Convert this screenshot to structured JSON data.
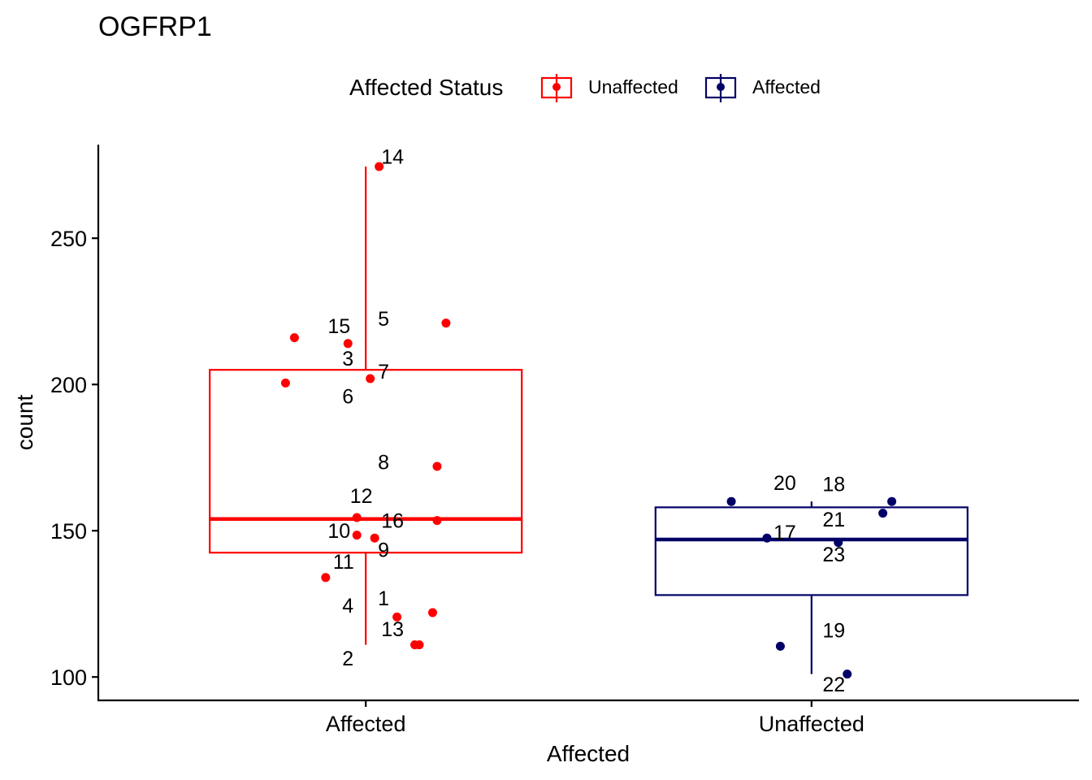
{
  "chart_data": {
    "type": "boxplot",
    "title": "OGFRP1",
    "xlabel": "Affected",
    "ylabel": "count",
    "ylim": [
      92,
      282
    ],
    "yticks": [
      100,
      150,
      200,
      250
    ],
    "categories": [
      "Affected",
      "Unaffected"
    ],
    "legend": {
      "title": "Affected Status",
      "position": "top",
      "entries": [
        {
          "label": "Unaffected",
          "color": "#FF0000"
        },
        {
          "label": "Affected",
          "color": "#000066"
        }
      ]
    },
    "boxes": [
      {
        "category": "Affected",
        "color": "#FF0000",
        "whisker_low": 111,
        "q1": 142.5,
        "median": 154,
        "q3": 205,
        "whisker_high": 274.5
      },
      {
        "category": "Unaffected",
        "color": "#000066",
        "whisker_low": 101,
        "q1": 128,
        "median": 147,
        "q3": 158,
        "whisker_high": 160
      }
    ],
    "points": [
      {
        "id": "1",
        "group": "Affected",
        "jitter": 0.07,
        "value": 120.5
      },
      {
        "id": "2",
        "group": "Affected",
        "jitter": 0.11,
        "value": 111
      },
      {
        "id": "3",
        "group": "Affected",
        "jitter": -0.04,
        "value": 214
      },
      {
        "id": "4",
        "group": "Affected",
        "jitter": 0.15,
        "value": 122
      },
      {
        "id": "5",
        "group": "Affected",
        "jitter": 0.18,
        "value": 221
      },
      {
        "id": "6",
        "group": "Affected",
        "jitter": -0.18,
        "value": 200.5
      },
      {
        "id": "7",
        "group": "Affected",
        "jitter": 0.01,
        "value": 202
      },
      {
        "id": "8",
        "group": "Affected",
        "jitter": 0.16,
        "value": 172
      },
      {
        "id": "9",
        "group": "Affected",
        "jitter": 0.02,
        "value": 147.5
      },
      {
        "id": "10",
        "group": "Affected",
        "jitter": -0.02,
        "value": 148.5
      },
      {
        "id": "11",
        "group": "Affected",
        "jitter": -0.09,
        "value": 134
      },
      {
        "id": "12",
        "group": "Affected",
        "jitter": -0.02,
        "value": 154.5
      },
      {
        "id": "13",
        "group": "Affected",
        "jitter": 0.12,
        "value": 111
      },
      {
        "id": "14",
        "group": "Affected",
        "jitter": 0.03,
        "value": 274.5
      },
      {
        "id": "15",
        "group": "Affected",
        "jitter": -0.16,
        "value": 216
      },
      {
        "id": "16",
        "group": "Affected",
        "jitter": 0.16,
        "value": 153.5
      },
      {
        "id": "17",
        "group": "Unaffected",
        "jitter": -0.1,
        "value": 147.5
      },
      {
        "id": "18",
        "group": "Unaffected",
        "jitter": 0.18,
        "value": 160
      },
      {
        "id": "19",
        "group": "Unaffected",
        "jitter": -0.07,
        "value": 110.5
      },
      {
        "id": "20",
        "group": "Unaffected",
        "jitter": -0.18,
        "value": 160
      },
      {
        "id": "21",
        "group": "Unaffected",
        "jitter": 0.16,
        "value": 156
      },
      {
        "id": "22",
        "group": "Unaffected",
        "jitter": 0.08,
        "value": 101
      },
      {
        "id": "23",
        "group": "Unaffected",
        "jitter": 0.06,
        "value": 146
      }
    ],
    "point_labels": [
      {
        "id": "1",
        "group": "Affected",
        "jitter": 0.04,
        "value": 127
      },
      {
        "id": "2",
        "group": "Affected",
        "jitter": -0.04,
        "value": 106.5
      },
      {
        "id": "3",
        "group": "Affected",
        "jitter": -0.04,
        "value": 209
      },
      {
        "id": "4",
        "group": "Affected",
        "jitter": -0.04,
        "value": 124.5
      },
      {
        "id": "5",
        "group": "Affected",
        "jitter": 0.04,
        "value": 222.5
      },
      {
        "id": "6",
        "group": "Affected",
        "jitter": -0.04,
        "value": 196
      },
      {
        "id": "7",
        "group": "Affected",
        "jitter": 0.04,
        "value": 204.5
      },
      {
        "id": "8",
        "group": "Affected",
        "jitter": 0.04,
        "value": 173.5
      },
      {
        "id": "9",
        "group": "Affected",
        "jitter": 0.04,
        "value": 143.5
      },
      {
        "id": "10",
        "group": "Affected",
        "jitter": -0.06,
        "value": 150
      },
      {
        "id": "11",
        "group": "Affected",
        "jitter": -0.05,
        "value": 139.5
      },
      {
        "id": "12",
        "group": "Affected",
        "jitter": -0.01,
        "value": 162
      },
      {
        "id": "13",
        "group": "Affected",
        "jitter": 0.06,
        "value": 116.5
      },
      {
        "id": "14",
        "group": "Affected",
        "jitter": 0.06,
        "value": 278
      },
      {
        "id": "15",
        "group": "Affected",
        "jitter": -0.06,
        "value": 220
      },
      {
        "id": "16",
        "group": "Affected",
        "jitter": 0.06,
        "value": 153.5
      },
      {
        "id": "17",
        "group": "Unaffected",
        "jitter": -0.06,
        "value": 149.5
      },
      {
        "id": "18",
        "group": "Unaffected",
        "jitter": 0.05,
        "value": 166
      },
      {
        "id": "19",
        "group": "Unaffected",
        "jitter": 0.05,
        "value": 116
      },
      {
        "id": "20",
        "group": "Unaffected",
        "jitter": -0.06,
        "value": 166.5
      },
      {
        "id": "21",
        "group": "Unaffected",
        "jitter": 0.05,
        "value": 154
      },
      {
        "id": "22",
        "group": "Unaffected",
        "jitter": 0.05,
        "value": 97.5
      },
      {
        "id": "23",
        "group": "Unaffected",
        "jitter": 0.05,
        "value": 142
      }
    ]
  }
}
